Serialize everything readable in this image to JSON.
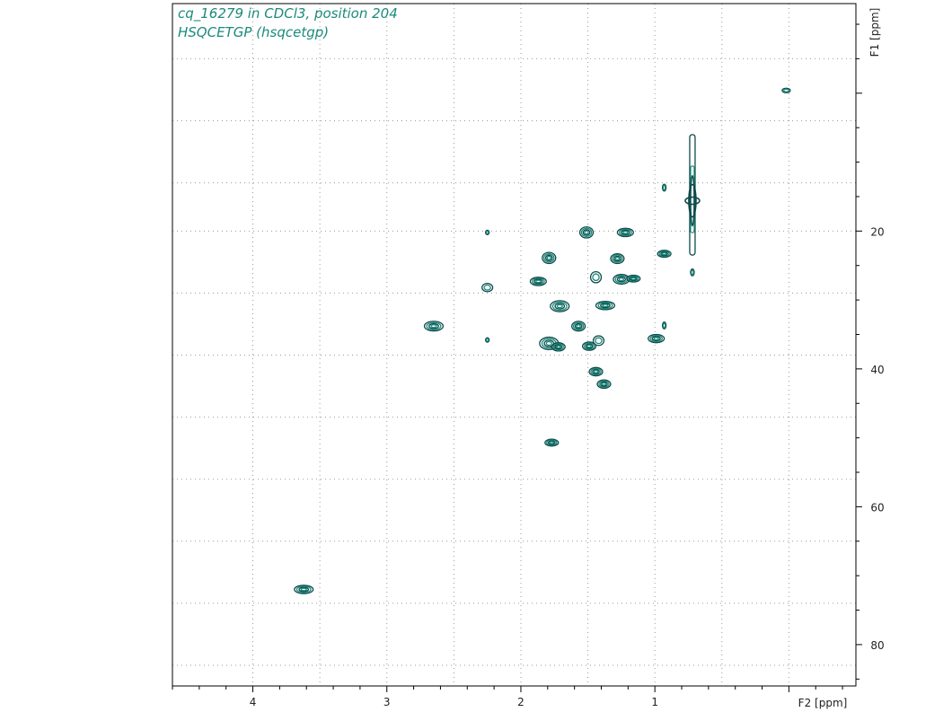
{
  "caption": {
    "line1": "cq_16279 in CDCl3, position 204",
    "line2": "HSQCETGP (hsqcetgp)"
  },
  "colors": {
    "contour_dark": "#0e4a4a",
    "contour_light": "#1a8a7a",
    "caption": "#1a8a7a",
    "grid": "#9a9a9a",
    "frame": "#000000"
  },
  "chart_data": {
    "type": "contour",
    "title": "",
    "xlabel": "F2 [ppm]",
    "ylabel": "F1 [ppm]",
    "xlim": [
      4.6,
      -0.5
    ],
    "ylim": [
      -13,
      86
    ],
    "x_axis": {
      "reversed": true,
      "major_ticks": [
        4,
        3,
        2,
        1
      ],
      "tick_labels": [
        "4",
        "3",
        "2",
        "1"
      ],
      "minor_step": 0.2,
      "grid_lines": [
        4.0,
        3.5,
        3.0,
        2.5,
        2.0,
        1.5,
        1.0,
        0.5,
        0.0
      ]
    },
    "y_axis": {
      "position": "right",
      "major_ticks": [
        20,
        40,
        60,
        80
      ],
      "tick_labels": [
        "20",
        "40",
        "60",
        "80"
      ],
      "minor_step": 5,
      "grid_lines": [
        -5,
        4,
        13,
        20,
        29,
        38,
        47,
        56,
        65,
        74,
        83
      ]
    },
    "grid": true,
    "peaks": [
      {
        "x": 3.62,
        "y": 72.0,
        "w": 0.07,
        "h": 0.6
      },
      {
        "x": 2.65,
        "y": 33.8,
        "w": 0.07,
        "h": 0.7
      },
      {
        "x": 2.25,
        "y": 28.2,
        "w": 0.04,
        "h": 0.6
      },
      {
        "x": 2.25,
        "y": 20.2,
        "w": 0.005,
        "h": 0.2
      },
      {
        "x": 2.25,
        "y": 35.8,
        "w": 0.005,
        "h": 0.2
      },
      {
        "x": 1.87,
        "y": 27.3,
        "w": 0.06,
        "h": 0.6
      },
      {
        "x": 1.79,
        "y": 23.9,
        "w": 0.05,
        "h": 0.8
      },
      {
        "x": 1.79,
        "y": 36.3,
        "w": 0.07,
        "h": 0.9
      },
      {
        "x": 1.72,
        "y": 36.8,
        "w": 0.05,
        "h": 0.6
      },
      {
        "x": 1.77,
        "y": 50.7,
        "w": 0.05,
        "h": 0.5
      },
      {
        "x": 1.71,
        "y": 30.9,
        "w": 0.07,
        "h": 0.8
      },
      {
        "x": 1.57,
        "y": 33.8,
        "w": 0.05,
        "h": 0.7
      },
      {
        "x": 1.51,
        "y": 20.2,
        "w": 0.05,
        "h": 0.8
      },
      {
        "x": 1.49,
        "y": 36.7,
        "w": 0.05,
        "h": 0.6
      },
      {
        "x": 1.42,
        "y": 35.9,
        "w": 0.04,
        "h": 0.7
      },
      {
        "x": 1.44,
        "y": 26.7,
        "w": 0.04,
        "h": 0.8
      },
      {
        "x": 1.44,
        "y": 40.4,
        "w": 0.05,
        "h": 0.6
      },
      {
        "x": 1.38,
        "y": 42.2,
        "w": 0.05,
        "h": 0.6
      },
      {
        "x": 1.37,
        "y": 30.8,
        "w": 0.07,
        "h": 0.6
      },
      {
        "x": 1.28,
        "y": 24.0,
        "w": 0.05,
        "h": 0.7
      },
      {
        "x": 1.25,
        "y": 27.0,
        "w": 0.06,
        "h": 0.7
      },
      {
        "x": 1.16,
        "y": 26.9,
        "w": 0.05,
        "h": 0.5
      },
      {
        "x": 1.22,
        "y": 20.2,
        "w": 0.06,
        "h": 0.6
      },
      {
        "x": 0.99,
        "y": 35.6,
        "w": 0.06,
        "h": 0.6
      },
      {
        "x": 0.93,
        "y": 23.3,
        "w": 0.05,
        "h": 0.5
      },
      {
        "x": 0.93,
        "y": 33.7,
        "w": 0.01,
        "h": 0.5
      },
      {
        "x": 0.93,
        "y": 13.7,
        "w": 0.01,
        "h": 0.5
      },
      {
        "x": 0.72,
        "y": 26.0,
        "w": 0.01,
        "h": 0.5
      },
      {
        "x": 0.02,
        "y": -0.4,
        "w": 0.03,
        "h": 0.2
      }
    ],
    "ridge": {
      "x": 0.72,
      "y_from": 6.0,
      "y_to": 23.5,
      "y_center": 15.6
    }
  }
}
